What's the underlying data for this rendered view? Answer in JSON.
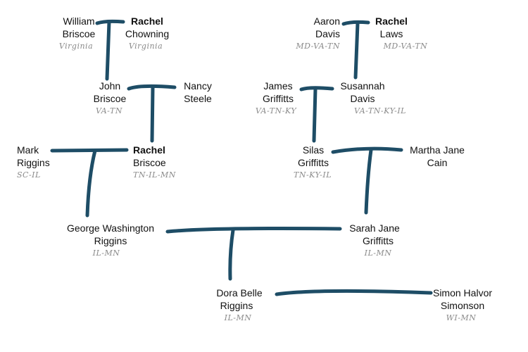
{
  "line_color": "#1e4d66",
  "people": [
    {
      "first": "William",
      "last": "Briscoe",
      "states": "Virginia",
      "bold": false
    },
    {
      "first": "Rachel",
      "last": "Chowning",
      "states": "Virginia",
      "bold": true
    },
    {
      "first": "John",
      "last": "Briscoe",
      "states": "VA-TN",
      "bold": false
    },
    {
      "first": "Nancy",
      "last": "Steele",
      "states": "",
      "bold": false
    },
    {
      "first": "Mark",
      "last": "Riggins",
      "states": "SC-IL",
      "bold": false
    },
    {
      "first": "Rachel",
      "last": "Briscoe",
      "states": "TN-IL-MN",
      "bold": true
    },
    {
      "first": "Aaron",
      "last": "Davis",
      "states": "MD-VA-TN",
      "bold": false
    },
    {
      "first": "Rachel",
      "last": "Laws",
      "states": "MD-VA-TN",
      "bold": true
    },
    {
      "first": "James",
      "last": "Griffitts",
      "states": "VA-TN-KY",
      "bold": false
    },
    {
      "first": "Susannah",
      "last": "Davis",
      "states": "VA-TN-KY-IL",
      "bold": false
    },
    {
      "first": "Silas",
      "last": "Griffitts",
      "states": "TN-KY-IL",
      "bold": false
    },
    {
      "first": "Martha Jane",
      "last": "Cain",
      "states": "",
      "bold": false
    },
    {
      "first": "George Washington",
      "last": "Riggins",
      "states": "IL-MN",
      "bold": false
    },
    {
      "first": "Sarah Jane",
      "last": "Griffitts",
      "states": "IL-MN",
      "bold": false
    },
    {
      "first": "Dora Belle",
      "last": "Riggins",
      "states": "IL-MN",
      "bold": false
    },
    {
      "first": "Simon Halvor",
      "last": "Simonson",
      "states": "WI-MN",
      "bold": false
    }
  ]
}
